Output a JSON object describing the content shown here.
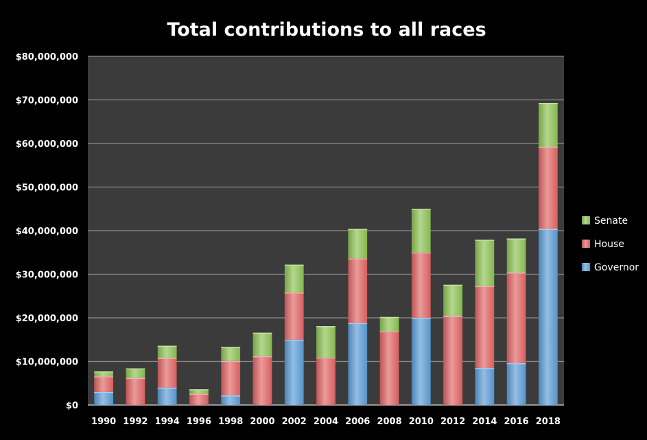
{
  "chart_data": {
    "type": "bar",
    "stacked": true,
    "title": "Total contributions to all races",
    "xlabel": "",
    "ylabel": "",
    "categories": [
      "1990",
      "1992",
      "1994",
      "1996",
      "1998",
      "2000",
      "2002",
      "2004",
      "2006",
      "2008",
      "2010",
      "2012",
      "2014",
      "2016",
      "2018"
    ],
    "series": [
      {
        "name": "Governor",
        "color": "#5b9bd5",
        "values": [
          3000000,
          0,
          4000000,
          0,
          2200000,
          0,
          15000000,
          0,
          18800000,
          0,
          20000000,
          0,
          8500000,
          9600000,
          40400000
        ]
      },
      {
        "name": "House",
        "color": "#e06464",
        "values": [
          3600000,
          6200000,
          6800000,
          2600000,
          7900000,
          11200000,
          10800000,
          10900000,
          14800000,
          16900000,
          15000000,
          20400000,
          18800000,
          20800000,
          18800000
        ]
      },
      {
        "name": "Senate",
        "color": "#8cc152",
        "values": [
          1100000,
          2200000,
          2800000,
          1000000,
          3200000,
          5400000,
          6400000,
          7200000,
          6800000,
          3300000,
          10000000,
          7200000,
          10600000,
          7800000,
          10100000
        ]
      }
    ],
    "ylim": [
      0,
      80000000
    ],
    "yticks": [
      0,
      10000000,
      20000000,
      30000000,
      40000000,
      50000000,
      60000000,
      70000000,
      80000000
    ],
    "ytick_labels": [
      "$0",
      "$10,000,000",
      "$20,000,000",
      "$30,000,000",
      "$40,000,000",
      "$50,000,000",
      "$60,000,000",
      "$70,000,000",
      "$80,000,000"
    ],
    "grid": true,
    "legend_position": "right",
    "legend_order": [
      "Senate",
      "House",
      "Governor"
    ],
    "colors": {
      "background": "#000000",
      "plot_area": "#3b3b3b",
      "gridline": "#8c8c8c",
      "text": "#ffffff"
    }
  }
}
